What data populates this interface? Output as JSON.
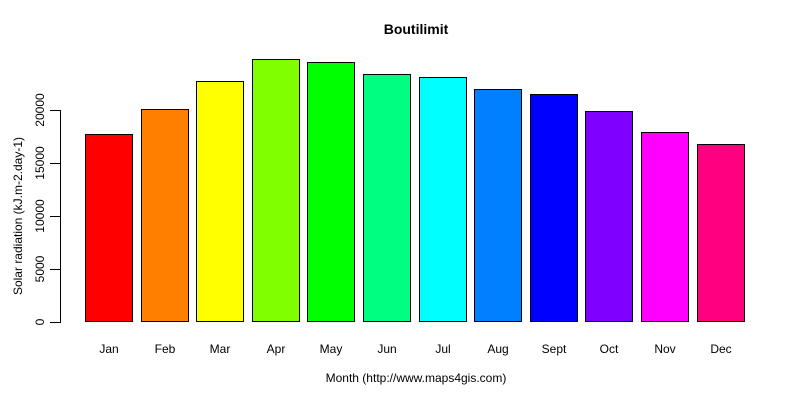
{
  "chart_data": {
    "type": "bar",
    "title": "Boutilimit",
    "xlabel": "Month (http://www.maps4gis.com)",
    "ylabel": "Solar radiation (kJ.m-2.day-1)",
    "categories": [
      "Jan",
      "Feb",
      "Mar",
      "Apr",
      "May",
      "Jun",
      "Jul",
      "Aug",
      "Sept",
      "Oct",
      "Nov",
      "Dec"
    ],
    "values": [
      17700,
      20100,
      22700,
      24800,
      24500,
      23400,
      23100,
      22000,
      21500,
      19900,
      17900,
      16800
    ],
    "bar_colors": [
      "#FF0000",
      "#FF8000",
      "#FFFF00",
      "#80FF00",
      "#00FF00",
      "#00FF80",
      "#00FFFF",
      "#0080FF",
      "#0000FF",
      "#8000FF",
      "#FF00FF",
      "#FF0080"
    ],
    "bar_border_color": "#000000",
    "yticks": [
      0,
      5000,
      10000,
      15000,
      20000
    ],
    "ylim": [
      0,
      25200
    ],
    "grid": false,
    "legend_position": "none",
    "text_color": "#000000",
    "background_color": "#FFFFFF"
  }
}
